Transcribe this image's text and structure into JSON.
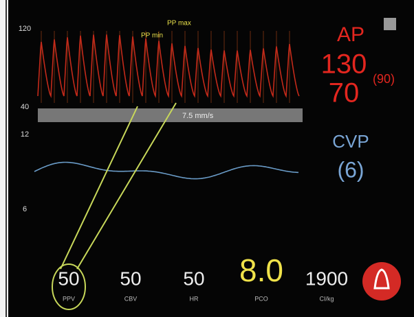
{
  "scale": {
    "ap_top": "120",
    "ap_bottom": "40",
    "cvp_top": "12",
    "cvp_bottom": "6"
  },
  "annotations": {
    "pp_max": "PP max",
    "pp_min": "PP min"
  },
  "sweep": "7.5 mm/s",
  "ap": {
    "label": "AP",
    "systolic": "130",
    "diastolic": "70",
    "mean": "(90)"
  },
  "cvp": {
    "label": "CVP",
    "value": "(6)"
  },
  "parameters": [
    {
      "value": "50",
      "label": "PPV"
    },
    {
      "value": "50",
      "label": "CBV"
    },
    {
      "value": "50",
      "label": "HR"
    },
    {
      "value": "8.0",
      "label": "PCO"
    },
    {
      "value": "1900",
      "label": "CI/kg"
    }
  ]
}
